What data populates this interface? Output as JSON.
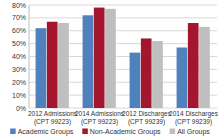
{
  "chart_data": {
    "type": "bar",
    "categories": [
      "2012 Admissions (CPT 99223)",
      "2014 Admissions (CPT 99223)",
      "2012 Discharges (CPT 99239)",
      "2014 Discharges (CPT 99239)"
    ],
    "series": [
      {
        "name": "Academic Groups",
        "color": "#4f81bd",
        "values": [
          62,
          72,
          43,
          47
        ]
      },
      {
        "name": "Non-Academic Groups",
        "color": "#a3162d",
        "values": [
          67,
          78,
          54,
          66
        ]
      },
      {
        "name": "All Groups",
        "color": "#bfbfbf",
        "values": [
          66,
          77,
          52,
          63
        ]
      }
    ],
    "ylim": [
      0,
      80
    ],
    "yticks": [
      {
        "value": 0,
        "label": "0%"
      },
      {
        "value": 10,
        "label": "10%"
      },
      {
        "value": 20,
        "label": "20%"
      },
      {
        "value": 30,
        "label": "30%"
      },
      {
        "value": 40,
        "label": "40%"
      },
      {
        "value": 50,
        "label": "50%"
      },
      {
        "value": 60,
        "label": "60%"
      },
      {
        "value": 70,
        "label": "70%"
      },
      {
        "value": 80,
        "label": "80%"
      }
    ],
    "grid": true,
    "legend": "bottom"
  }
}
